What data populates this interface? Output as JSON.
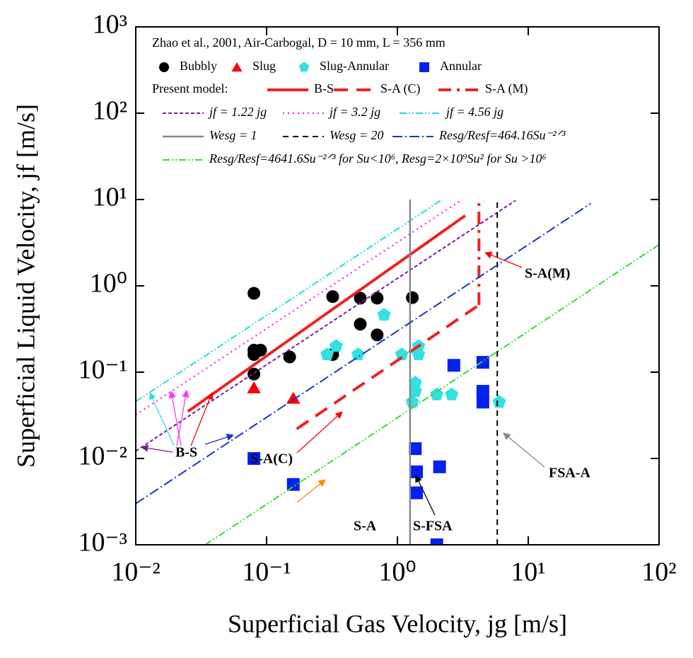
{
  "chart_data": {
    "type": "scatter",
    "xlabel": "Superficial Gas Velocity,  jg  [m/s]",
    "ylabel": "Superficial Liquid Velocity,  jf  [m/s]",
    "xscale": "log",
    "yscale": "log",
    "xlim": [
      0.01,
      100
    ],
    "ylim": [
      0.001,
      1000
    ],
    "xticks": [
      {
        "value": 0.01,
        "label": "10⁻²"
      },
      {
        "value": 0.1,
        "label": "10⁻¹"
      },
      {
        "value": 1,
        "label": "10⁰"
      },
      {
        "value": 10,
        "label": "10¹"
      },
      {
        "value": 100,
        "label": "10²"
      }
    ],
    "yticks": [
      {
        "value": 0.001,
        "label": "10⁻³"
      },
      {
        "value": 0.01,
        "label": "10⁻²"
      },
      {
        "value": 0.1,
        "label": "10⁻¹"
      },
      {
        "value": 1,
        "label": "10⁰"
      },
      {
        "value": 10,
        "label": "10¹"
      },
      {
        "value": 100,
        "label": "10²"
      },
      {
        "value": 1000,
        "label": "10³"
      }
    ],
    "legend_title": "Zhao et al., 2001, Air-Carbogal, D = 10 mm, L = 356 mm",
    "legend_group": "Present model:",
    "series": [
      {
        "name": "Bubbly",
        "type": "scatter",
        "marker": "circle",
        "color": "#000000",
        "x": [
          0.08,
          0.08,
          0.08,
          0.09,
          0.08,
          0.15,
          0.32,
          0.32,
          0.52,
          0.52,
          0.7,
          0.7,
          1.3
        ],
        "values": [
          0.82,
          0.18,
          0.16,
          0.18,
          0.095,
          0.15,
          0.75,
          0.16,
          0.72,
          0.36,
          0.72,
          0.27,
          0.73
        ]
      },
      {
        "name": "Slug",
        "type": "scatter",
        "marker": "triangle",
        "color": "#ff0000",
        "x": [
          0.08,
          0.16
        ],
        "values": [
          0.066,
          0.05
        ]
      },
      {
        "name": "Slug-Annular",
        "type": "scatter",
        "marker": "pentagon",
        "color": "#33e0e0",
        "x": [
          0.29,
          0.34,
          0.5,
          0.79,
          1.08,
          1.45,
          1.45,
          1.37,
          1.37,
          1.3,
          2.0,
          2.6,
          6.0
        ],
        "values": [
          0.16,
          0.2,
          0.16,
          0.46,
          0.16,
          0.2,
          0.16,
          0.075,
          0.06,
          0.045,
          0.055,
          0.055,
          0.045
        ]
      },
      {
        "name": "Annular",
        "type": "scatter",
        "marker": "square",
        "color": "#0022ee",
        "x": [
          0.08,
          0.16,
          1.37,
          1.4,
          1.4,
          2.1,
          2.7,
          4.5,
          4.5,
          4.5,
          2.0
        ],
        "values": [
          0.01,
          0.005,
          0.013,
          0.007,
          0.004,
          0.008,
          0.12,
          0.13,
          0.06,
          0.045,
          0.001
        ]
      },
      {
        "name": "B-S",
        "type": "line",
        "style": "solid-thick",
        "color": "#ee2222",
        "x": [
          0.025,
          3.3
        ],
        "values": [
          0.035,
          6.5
        ]
      },
      {
        "name": "S-A (C)",
        "type": "line",
        "style": "dashed-thick",
        "color": "#ee2222",
        "x": [
          0.17,
          4.2
        ],
        "values": [
          0.022,
          0.6
        ]
      },
      {
        "name": "S-A (M)",
        "type": "line",
        "style": "dashdot-thick",
        "color": "#ee2222",
        "x": [
          4.2,
          4.2
        ],
        "values": [
          0.6,
          10
        ]
      },
      {
        "name": "jf = 1.22 jg",
        "type": "line",
        "style": "dashed",
        "color": "#7a1f8f",
        "x": [
          0.01,
          8
        ],
        "values": [
          0.0122,
          9.76
        ]
      },
      {
        "name": "jf = 3.2 jg",
        "type": "line",
        "style": "dotted",
        "color": "#ee22ee",
        "x": [
          0.01,
          3
        ],
        "values": [
          0.032,
          9.6
        ]
      },
      {
        "name": "jf = 4.56 jg",
        "type": "line",
        "style": "dashdotdot",
        "color": "#22dddd",
        "x": [
          0.01,
          2.2
        ],
        "values": [
          0.0456,
          10
        ]
      },
      {
        "name": "Wesg = 1",
        "type": "line",
        "style": "solid",
        "color": "#888888",
        "x": [
          1.25,
          1.25
        ],
        "values": [
          0.001,
          10
        ]
      },
      {
        "name": "Wesg = 20",
        "type": "line",
        "style": "longdash",
        "color": "#000000",
        "x": [
          5.8,
          5.8
        ],
        "values": [
          0.001,
          10
        ]
      },
      {
        "name": "Resg/Resf=464.16Su⁻²ᐟ³",
        "type": "line",
        "style": "dashdot",
        "color": "#1a33cc",
        "x": [
          0.01,
          30
        ],
        "values": [
          0.003,
          9
        ]
      },
      {
        "name": "Resg/Resf=4641.6Su⁻²ᐟ³ for Su<10⁶, Resg=2×10⁹Su² for Su >10⁶",
        "type": "line",
        "style": "dashdotdot",
        "color": "#33dd33",
        "x": [
          0.034,
          100
        ],
        "values": [
          0.001,
          3
        ]
      }
    ],
    "annotations": [
      "B-S",
      "S-A(C)",
      "S-A",
      "S-FSA",
      "FSA-A",
      "S-A(M)"
    ]
  }
}
